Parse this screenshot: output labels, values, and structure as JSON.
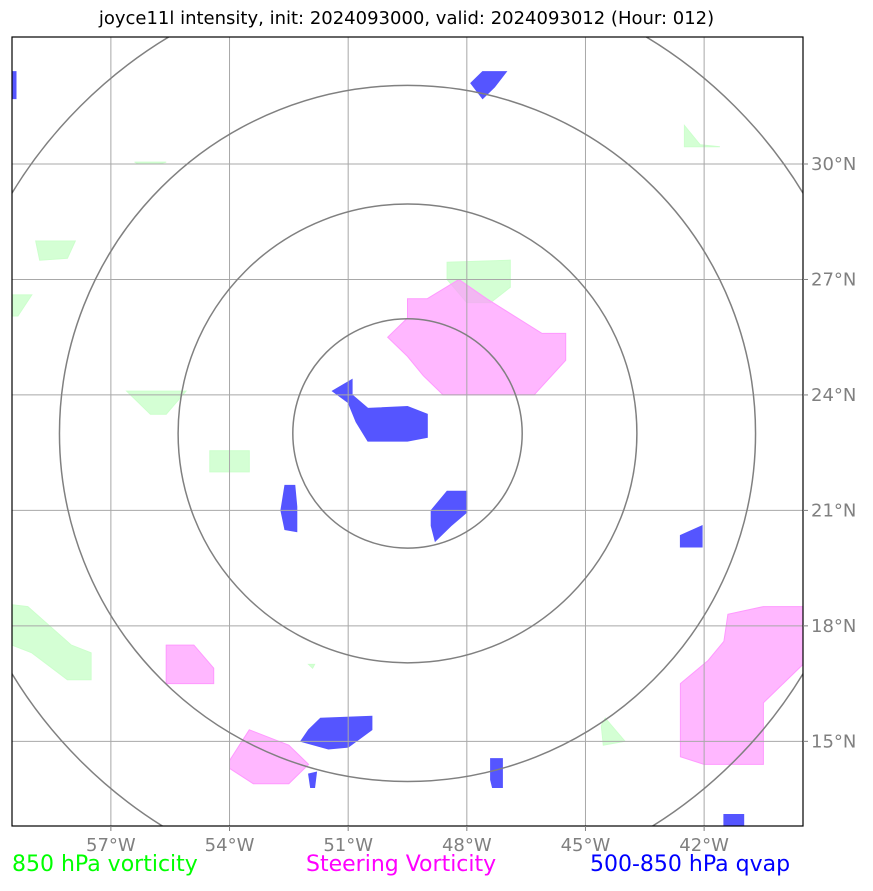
{
  "title": "joyce11l intensity, init: 2024093000, valid: 2024093012 (Hour: 012)",
  "legend": [
    {
      "label": "850 hPa vorticity",
      "color": "#00ff00"
    },
    {
      "label": "Steering Vorticity",
      "color": "#ff00ff"
    },
    {
      "label": "500-850 hPa qvap",
      "color": "#0000ff"
    }
  ],
  "chart_data": {
    "type": "map",
    "xlim": [
      -59.5,
      -39.5
    ],
    "ylim": [
      12.8,
      33.3
    ],
    "x_ticks": [
      {
        "value": -57,
        "label": "57°W"
      },
      {
        "value": -54,
        "label": "54°W"
      },
      {
        "value": -51,
        "label": "51°W"
      },
      {
        "value": -48,
        "label": "48°W"
      },
      {
        "value": -45,
        "label": "45°W"
      },
      {
        "value": -42,
        "label": "42°W"
      }
    ],
    "y_ticks": [
      {
        "value": 30,
        "label": "30°N"
      },
      {
        "value": 27,
        "label": "27°N"
      },
      {
        "value": 24,
        "label": "24°N"
      },
      {
        "value": 21,
        "label": "21°N"
      },
      {
        "value": 18,
        "label": "18°N"
      },
      {
        "value": 15,
        "label": "15°N"
      }
    ],
    "grid": true,
    "range_rings": {
      "center": [
        -49.5,
        23.0
      ],
      "radii_deg": [
        2.9,
        5.8,
        8.8,
        11.7
      ],
      "color": "#808080"
    },
    "colors": {
      "v850": "#ccffcc",
      "steer": "#ff99ff",
      "qvap": "#5555ff"
    },
    "regions": {
      "v850": [
        [
          [
            -56.4,
            30.05
          ],
          [
            -55.6,
            30.05
          ],
          [
            -55.8,
            30.0
          ],
          [
            -56.3,
            30.0
          ]
        ],
        [
          [
            -58.9,
            28.0
          ],
          [
            -57.9,
            28.0
          ],
          [
            -58.1,
            27.55
          ],
          [
            -58.8,
            27.5
          ]
        ],
        [
          [
            -59.5,
            26.6
          ],
          [
            -59.0,
            26.6
          ],
          [
            -59.35,
            26.05
          ],
          [
            -59.5,
            26.05
          ]
        ],
        [
          [
            -56.6,
            24.1
          ],
          [
            -55.1,
            24.1
          ],
          [
            -55.6,
            23.5
          ],
          [
            -56.0,
            23.5
          ]
        ],
        [
          [
            -54.5,
            22.55
          ],
          [
            -53.5,
            22.55
          ],
          [
            -53.5,
            22.0
          ],
          [
            -54.5,
            22.0
          ]
        ],
        [
          [
            -48.5,
            27.45
          ],
          [
            -46.9,
            27.5
          ],
          [
            -46.9,
            26.8
          ],
          [
            -47.4,
            26.4
          ],
          [
            -48.0,
            26.4
          ],
          [
            -48.5,
            27.0
          ]
        ],
        [
          [
            -42.5,
            31.0
          ],
          [
            -42.1,
            30.5
          ],
          [
            -41.6,
            30.45
          ],
          [
            -42.5,
            30.45
          ]
        ],
        [
          [
            -59.5,
            18.55
          ],
          [
            -59.1,
            18.5
          ],
          [
            -58.0,
            17.5
          ],
          [
            -57.5,
            17.3
          ],
          [
            -57.5,
            16.6
          ],
          [
            -58.1,
            16.6
          ],
          [
            -59.0,
            17.3
          ],
          [
            -59.5,
            17.5
          ]
        ],
        [
          [
            -52.0,
            17.0
          ],
          [
            -51.85,
            17.0
          ],
          [
            -51.9,
            16.9
          ]
        ],
        [
          [
            -44.5,
            15.6
          ],
          [
            -44.0,
            15.0
          ],
          [
            -44.55,
            14.9
          ],
          [
            -44.6,
            15.4
          ]
        ]
      ],
      "steer": [
        [
          [
            -49.0,
            26.5
          ],
          [
            -48.2,
            27.0
          ],
          [
            -47.5,
            26.5
          ],
          [
            -46.1,
            25.6
          ],
          [
            -45.5,
            25.6
          ],
          [
            -45.5,
            24.9
          ],
          [
            -46.3,
            24.0
          ],
          [
            -48.6,
            24.0
          ],
          [
            -49.1,
            24.5
          ],
          [
            -49.5,
            25.0
          ],
          [
            -50.0,
            25.5
          ],
          [
            -49.5,
            26.0
          ],
          [
            -49.5,
            26.5
          ]
        ],
        [
          [
            -55.6,
            17.5
          ],
          [
            -54.9,
            17.5
          ],
          [
            -54.4,
            16.9
          ],
          [
            -54.4,
            16.5
          ],
          [
            -55.6,
            16.5
          ]
        ],
        [
          [
            -53.5,
            15.3
          ],
          [
            -52.5,
            14.9
          ],
          [
            -52.0,
            14.4
          ],
          [
            -52.5,
            13.9
          ],
          [
            -53.4,
            13.9
          ],
          [
            -54.0,
            14.3
          ],
          [
            -54.0,
            14.5
          ]
        ],
        [
          [
            -40.5,
            18.5
          ],
          [
            -39.5,
            18.5
          ],
          [
            -39.5,
            17.0
          ],
          [
            -40.5,
            16.0
          ],
          [
            -40.5,
            14.4
          ],
          [
            -42.0,
            14.4
          ],
          [
            -42.6,
            14.6
          ],
          [
            -42.6,
            16.5
          ],
          [
            -41.9,
            17.1
          ],
          [
            -41.5,
            17.6
          ],
          [
            -41.4,
            18.3
          ]
        ]
      ],
      "qvap": [
        [
          [
            -47.6,
            32.4
          ],
          [
            -47.0,
            32.4
          ],
          [
            -47.3,
            32.0
          ],
          [
            -47.6,
            31.7
          ],
          [
            -47.9,
            32.1
          ]
        ],
        [
          [
            -51.4,
            24.1
          ],
          [
            -50.9,
            24.4
          ],
          [
            -50.9,
            24.0
          ],
          [
            -50.5,
            23.65
          ],
          [
            -49.5,
            23.7
          ],
          [
            -49.0,
            23.5
          ],
          [
            -49.0,
            22.9
          ],
          [
            -49.5,
            22.8
          ],
          [
            -50.5,
            22.8
          ],
          [
            -50.8,
            23.3
          ],
          [
            -51.0,
            23.8
          ]
        ],
        [
          [
            -52.6,
            21.65
          ],
          [
            -52.35,
            21.65
          ],
          [
            -52.3,
            21.1
          ],
          [
            -52.3,
            20.45
          ],
          [
            -52.6,
            20.5
          ],
          [
            -52.7,
            21.0
          ]
        ],
        [
          [
            -48.5,
            21.5
          ],
          [
            -48.0,
            21.5
          ],
          [
            -48.0,
            20.95
          ],
          [
            -48.4,
            20.6
          ],
          [
            -48.8,
            20.2
          ],
          [
            -48.9,
            20.6
          ],
          [
            -48.9,
            21.0
          ]
        ],
        [
          [
            -42.6,
            20.35
          ],
          [
            -42.05,
            20.6
          ],
          [
            -42.05,
            20.05
          ],
          [
            -42.6,
            20.05
          ]
        ],
        [
          [
            -51.7,
            15.6
          ],
          [
            -50.4,
            15.65
          ],
          [
            -50.4,
            15.3
          ],
          [
            -51.0,
            14.85
          ],
          [
            -51.5,
            14.8
          ],
          [
            -52.2,
            15.0
          ],
          [
            -52.0,
            15.3
          ]
        ],
        [
          [
            -52.0,
            14.15
          ],
          [
            -51.8,
            14.2
          ],
          [
            -51.85,
            13.8
          ],
          [
            -51.95,
            13.8
          ]
        ],
        [
          [
            -47.4,
            14.55
          ],
          [
            -47.1,
            14.55
          ],
          [
            -47.1,
            13.8
          ],
          [
            -47.35,
            13.8
          ],
          [
            -47.4,
            14.0
          ]
        ],
        [
          [
            -41.5,
            13.1
          ],
          [
            -41.0,
            13.1
          ],
          [
            -41.0,
            12.8
          ],
          [
            -41.5,
            12.8
          ]
        ],
        [
          [
            -59.5,
            32.4
          ],
          [
            -59.4,
            32.4
          ],
          [
            -59.4,
            31.7
          ],
          [
            -59.5,
            31.7
          ]
        ]
      ]
    }
  }
}
